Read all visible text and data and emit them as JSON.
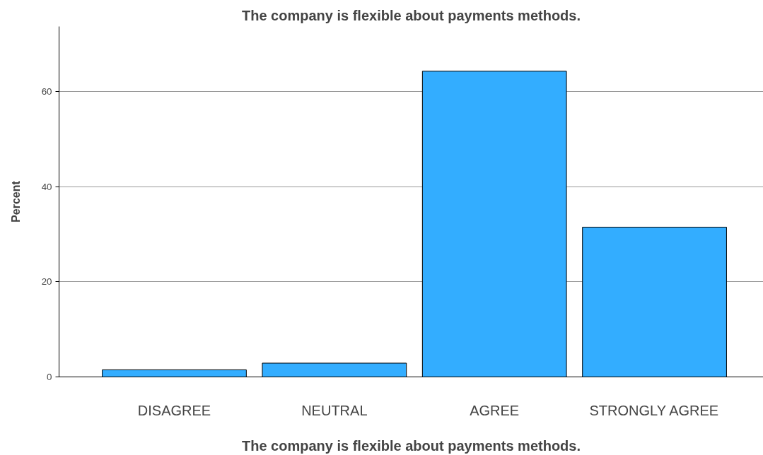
{
  "chart_data": {
    "type": "bar",
    "title": "The company is flexible about payments methods.",
    "xlabel": "The company is flexible about payments methods.",
    "ylabel": "Percent",
    "categories": [
      "DISAGREE",
      "NEUTRAL",
      "AGREE",
      "STRONGLY AGREE"
    ],
    "values": [
      1.5,
      2.9,
      64.3,
      31.5
    ],
    "color": "#33adff",
    "ylim": [
      0,
      73.7
    ],
    "yticks": [
      0,
      20,
      40,
      60
    ],
    "grid": "y"
  }
}
